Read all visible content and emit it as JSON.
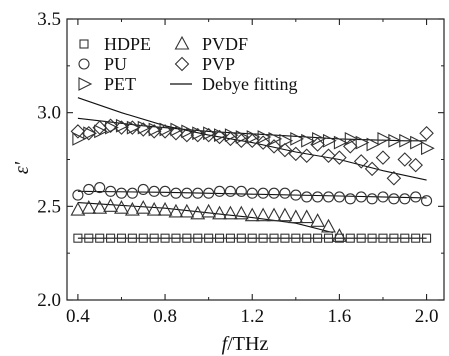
{
  "chart_data": {
    "type": "scatter",
    "title": "",
    "xlabel_italic": "f",
    "xlabel_unit": "/THz",
    "ylabel": "ε'",
    "xlim": [
      0.35,
      2.08
    ],
    "ylim": [
      2.0,
      3.5
    ],
    "xticks": [
      "0.4",
      "0.8",
      "1.2",
      "1.6",
      "2.0"
    ],
    "xtick_values": [
      0.4,
      0.8,
      1.2,
      1.6,
      2.0
    ],
    "yticks": [
      "2.0",
      "2.5",
      "3.0",
      "3.5"
    ],
    "ytick_values": [
      2.0,
      2.5,
      3.0,
      3.5
    ],
    "series": [
      {
        "name": "HDPE",
        "marker": "square",
        "x": [
          0.4,
          0.45,
          0.5,
          0.55,
          0.6,
          0.65,
          0.7,
          0.75,
          0.8,
          0.85,
          0.9,
          0.95,
          1.0,
          1.05,
          1.1,
          1.15,
          1.2,
          1.25,
          1.3,
          1.35,
          1.4,
          1.45,
          1.5,
          1.55,
          1.6,
          1.65,
          1.7,
          1.75,
          1.8,
          1.85,
          1.9,
          1.95,
          2.0
        ],
        "y": [
          2.33,
          2.33,
          2.33,
          2.33,
          2.33,
          2.33,
          2.33,
          2.33,
          2.33,
          2.33,
          2.33,
          2.33,
          2.33,
          2.33,
          2.33,
          2.33,
          2.33,
          2.33,
          2.33,
          2.33,
          2.33,
          2.33,
          2.33,
          2.33,
          2.33,
          2.33,
          2.33,
          2.33,
          2.33,
          2.33,
          2.33,
          2.33,
          2.33
        ]
      },
      {
        "name": "PU",
        "marker": "circle",
        "x": [
          0.4,
          0.45,
          0.5,
          0.55,
          0.6,
          0.65,
          0.7,
          0.75,
          0.8,
          0.85,
          0.9,
          0.95,
          1.0,
          1.05,
          1.1,
          1.15,
          1.2,
          1.25,
          1.3,
          1.35,
          1.4,
          1.45,
          1.5,
          1.55,
          1.6,
          1.65,
          1.7,
          1.75,
          1.8,
          1.85,
          1.9,
          1.95,
          2.0
        ],
        "y": [
          2.56,
          2.59,
          2.6,
          2.58,
          2.57,
          2.57,
          2.59,
          2.58,
          2.58,
          2.57,
          2.57,
          2.57,
          2.57,
          2.58,
          2.58,
          2.58,
          2.57,
          2.57,
          2.57,
          2.57,
          2.56,
          2.55,
          2.55,
          2.55,
          2.55,
          2.54,
          2.55,
          2.54,
          2.55,
          2.54,
          2.54,
          2.55,
          2.53
        ]
      },
      {
        "name": "PET",
        "marker": "triangle-right",
        "x": [
          0.4,
          0.45,
          0.5,
          0.55,
          0.6,
          0.65,
          0.7,
          0.75,
          0.8,
          0.85,
          0.9,
          0.95,
          1.0,
          1.05,
          1.1,
          1.15,
          1.2,
          1.25,
          1.3,
          1.35,
          1.4,
          1.45,
          1.5,
          1.55,
          1.6,
          1.65,
          1.7,
          1.75,
          1.8,
          1.85,
          1.9,
          1.95,
          2.0
        ],
        "y": [
          2.86,
          2.89,
          2.9,
          2.92,
          2.93,
          2.92,
          2.92,
          2.91,
          2.91,
          2.91,
          2.9,
          2.89,
          2.89,
          2.88,
          2.88,
          2.87,
          2.87,
          2.87,
          2.86,
          2.85,
          2.86,
          2.85,
          2.86,
          2.85,
          2.84,
          2.86,
          2.84,
          2.83,
          2.86,
          2.85,
          2.85,
          2.84,
          2.81
        ]
      },
      {
        "name": "PVDF",
        "marker": "triangle-up",
        "x": [
          0.4,
          0.45,
          0.5,
          0.55,
          0.6,
          0.65,
          0.7,
          0.75,
          0.8,
          0.85,
          0.9,
          0.95,
          1.0,
          1.05,
          1.1,
          1.15,
          1.2,
          1.25,
          1.3,
          1.35,
          1.4,
          1.45,
          1.5,
          1.55,
          1.6
        ],
        "y": [
          2.48,
          2.49,
          2.49,
          2.5,
          2.49,
          2.48,
          2.49,
          2.48,
          2.48,
          2.47,
          2.47,
          2.46,
          2.47,
          2.46,
          2.46,
          2.46,
          2.45,
          2.45,
          2.45,
          2.45,
          2.44,
          2.44,
          2.42,
          2.39,
          2.34
        ]
      },
      {
        "name": "PVP",
        "marker": "diamond",
        "x": [
          0.4,
          0.45,
          0.5,
          0.55,
          0.6,
          0.65,
          0.7,
          0.75,
          0.8,
          0.85,
          0.9,
          0.95,
          1.0,
          1.05,
          1.1,
          1.15,
          1.2,
          1.25,
          1.3,
          1.35,
          1.4,
          1.45,
          1.5,
          1.55,
          1.6,
          1.65,
          1.7,
          1.75,
          1.8,
          1.85,
          1.9,
          1.95,
          2.0
        ],
        "y": [
          2.9,
          2.89,
          2.92,
          2.93,
          2.92,
          2.92,
          2.91,
          2.9,
          2.9,
          2.89,
          2.88,
          2.88,
          2.88,
          2.87,
          2.86,
          2.85,
          2.85,
          2.84,
          2.82,
          2.8,
          2.78,
          2.77,
          2.83,
          2.77,
          2.76,
          2.82,
          2.74,
          2.7,
          2.76,
          2.65,
          2.75,
          2.72,
          2.89
        ]
      }
    ],
    "fits": [
      {
        "name": "Debye fitting",
        "x": [
          0.4,
          0.6,
          0.8,
          1.0,
          1.2,
          1.4,
          1.6,
          1.8,
          2.0
        ],
        "y": [
          3.08,
          3.0,
          2.93,
          2.88,
          2.84,
          2.79,
          2.75,
          2.69,
          2.64
        ]
      },
      {
        "name": "Debye fitting",
        "x": [
          0.4,
          0.7,
          1.0,
          1.3,
          1.6,
          1.9,
          2.0
        ],
        "y": [
          2.97,
          2.93,
          2.9,
          2.88,
          2.86,
          2.85,
          2.85
        ]
      },
      {
        "name": "Debye fitting",
        "x": [
          0.4,
          0.8,
          1.2,
          1.6,
          2.0
        ],
        "y": [
          2.58,
          2.575,
          2.565,
          2.555,
          2.545
        ]
      },
      {
        "name": "Debye fitting",
        "x": [
          0.4,
          0.8,
          1.2,
          1.4,
          1.57
        ],
        "y": [
          2.52,
          2.49,
          2.44,
          2.41,
          2.36
        ]
      },
      {
        "name": "Debye fitting",
        "x": [
          0.4,
          0.8,
          1.2,
          1.6,
          2.0
        ],
        "y": [
          2.33,
          2.33,
          2.33,
          2.33,
          2.33
        ]
      }
    ],
    "legend": [
      {
        "marker": "square",
        "label": "HDPE"
      },
      {
        "marker": "triangle-up",
        "label": "PVDF"
      },
      {
        "marker": "circle",
        "label": "PU"
      },
      {
        "marker": "diamond",
        "label": "PVP"
      },
      {
        "marker": "triangle-right",
        "label": "PET"
      },
      {
        "marker": "line",
        "label": "Debye fitting"
      }
    ],
    "legend_position": "top-left",
    "grid": false
  }
}
